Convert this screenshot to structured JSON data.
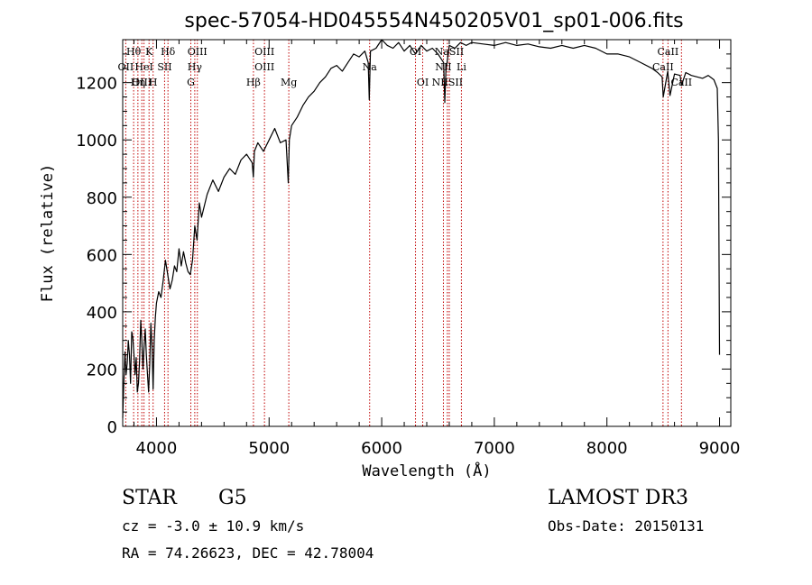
{
  "chart_data": {
    "type": "line",
    "title": "spec-57054-HD045554N450205V01_sp01-006.fits",
    "xlabel": "Wavelength (Å)",
    "ylabel": "Flux (relative)",
    "xlim": [
      3700,
      9100
    ],
    "ylim": [
      0,
      1350
    ],
    "xticks": [
      4000,
      5000,
      6000,
      7000,
      8000,
      9000
    ],
    "xtick_labels": [
      "4000",
      "5000",
      "6000",
      "7000",
      "8000",
      "9000"
    ],
    "yticks": [
      0,
      200,
      400,
      600,
      800,
      1000,
      1200
    ],
    "ytick_labels": [
      "0",
      "200",
      "400",
      "600",
      "800",
      "1000",
      "1200"
    ],
    "grid": false,
    "series": [
      {
        "name": "spectrum",
        "x": [
          3700,
          3710,
          3720,
          3730,
          3740,
          3750,
          3760,
          3770,
          3780,
          3790,
          3800,
          3810,
          3820,
          3830,
          3840,
          3850,
          3860,
          3870,
          3880,
          3890,
          3900,
          3910,
          3920,
          3930,
          3940,
          3950,
          3960,
          3970,
          3980,
          3990,
          4000,
          4020,
          4040,
          4060,
          4080,
          4100,
          4120,
          4140,
          4160,
          4180,
          4200,
          4220,
          4240,
          4260,
          4280,
          4300,
          4320,
          4340,
          4360,
          4380,
          4400,
          4450,
          4500,
          4550,
          4600,
          4650,
          4700,
          4750,
          4800,
          4850,
          4860,
          4870,
          4900,
          4950,
          5000,
          5050,
          5100,
          5150,
          5170,
          5180,
          5200,
          5250,
          5300,
          5350,
          5400,
          5450,
          5500,
          5550,
          5600,
          5650,
          5700,
          5750,
          5800,
          5850,
          5880,
          5890,
          5900,
          5950,
          6000,
          6050,
          6100,
          6150,
          6200,
          6250,
          6300,
          6350,
          6400,
          6450,
          6500,
          6550,
          6560,
          6570,
          6600,
          6650,
          6700,
          6750,
          6800,
          6900,
          7000,
          7100,
          7200,
          7300,
          7400,
          7500,
          7600,
          7700,
          7800,
          7900,
          8000,
          8100,
          8200,
          8300,
          8400,
          8450,
          8490,
          8500,
          8540,
          8560,
          8600,
          8650,
          8662,
          8700,
          8750,
          8800,
          8850,
          8900,
          8950,
          8980,
          8990,
          9000
        ],
        "values": [
          30,
          150,
          260,
          180,
          220,
          300,
          250,
          150,
          330,
          310,
          250,
          180,
          240,
          120,
          150,
          230,
          370,
          300,
          200,
          280,
          340,
          250,
          180,
          120,
          220,
          360,
          280,
          130,
          300,
          380,
          430,
          470,
          450,
          510,
          580,
          530,
          480,
          510,
          560,
          540,
          620,
          560,
          610,
          570,
          540,
          530,
          580,
          700,
          650,
          780,
          730,
          810,
          860,
          820,
          870,
          900,
          880,
          930,
          950,
          920,
          870,
          960,
          990,
          960,
          1000,
          1040,
          990,
          1000,
          850,
          1000,
          1050,
          1080,
          1120,
          1150,
          1170,
          1200,
          1220,
          1250,
          1260,
          1240,
          1270,
          1300,
          1290,
          1310,
          1270,
          1140,
          1310,
          1320,
          1350,
          1330,
          1320,
          1340,
          1310,
          1330,
          1300,
          1330,
          1310,
          1320,
          1300,
          1270,
          1130,
          1240,
          1330,
          1320,
          1340,
          1330,
          1340,
          1335,
          1330,
          1340,
          1330,
          1335,
          1325,
          1320,
          1330,
          1320,
          1330,
          1320,
          1300,
          1300,
          1290,
          1270,
          1250,
          1235,
          1220,
          1150,
          1240,
          1155,
          1230,
          1225,
          1190,
          1235,
          1225,
          1220,
          1215,
          1225,
          1210,
          1180,
          1000,
          250
        ]
      }
    ],
    "line_labels": [
      {
        "text": "Hθ",
        "x": 3797,
        "row": 1,
        "line": true
      },
      {
        "text": "K",
        "x": 3934,
        "row": 1,
        "line": true
      },
      {
        "text": "Hδ",
        "x": 4102,
        "row": 1,
        "line": true
      },
      {
        "text": "OIII",
        "x": 4363,
        "row": 1,
        "line": true
      },
      {
        "text": "OIII",
        "x": 4959,
        "row": 1,
        "line": true
      },
      {
        "text": "OI",
        "x": 6300,
        "row": 1,
        "line": true
      },
      {
        "text": "NaSII",
        "x": 6600,
        "row": 1,
        "line": true
      },
      {
        "text": "CaII",
        "x": 8542,
        "row": 1,
        "line": true
      },
      {
        "text": "OII",
        "x": 3727,
        "row": 2,
        "line": true
      },
      {
        "text": "HeI",
        "x": 3889,
        "row": 2,
        "line": true
      },
      {
        "text": "SII",
        "x": 4072,
        "row": 2,
        "line": true
      },
      {
        "text": "Hγ",
        "x": 4340,
        "row": 2,
        "line": true
      },
      {
        "text": "OIII",
        "x": 4959,
        "row": 2,
        "line": true
      },
      {
        "text": "Na",
        "x": 5893,
        "row": 2,
        "line": true
      },
      {
        "text": "NII",
        "x": 6548,
        "row": 2,
        "line": true
      },
      {
        "text": "Li",
        "x": 6708,
        "row": 2,
        "line": true
      },
      {
        "text": "CaII",
        "x": 8498,
        "row": 2,
        "line": true
      },
      {
        "text": "OIII",
        "x": 3870,
        "row": 3,
        "line": true
      },
      {
        "text": "Hη",
        "x": 3835,
        "row": 3,
        "line": true
      },
      {
        "text": "H",
        "x": 3970,
        "row": 3,
        "line": true
      },
      {
        "text": "G",
        "x": 4305,
        "row": 3,
        "line": true
      },
      {
        "text": "Hβ",
        "x": 4861,
        "row": 3,
        "line": true
      },
      {
        "text": "Mg",
        "x": 5175,
        "row": 3,
        "line": true
      },
      {
        "text": "OI",
        "x": 6364,
        "row": 3,
        "line": true
      },
      {
        "text": "NIISII",
        "x": 6583,
        "row": 3,
        "line": true
      },
      {
        "text": "CaII",
        "x": 8662,
        "row": 3,
        "line": true
      }
    ]
  },
  "info": {
    "object_class": "STAR",
    "subclass": "G5",
    "survey": "LAMOST DR3",
    "cz": "cz = -3.0 ± 10.9 km/s",
    "obs_date": "Obs-Date: 20150131",
    "coords": "RA =  74.26623, DEC =  42.78004"
  }
}
